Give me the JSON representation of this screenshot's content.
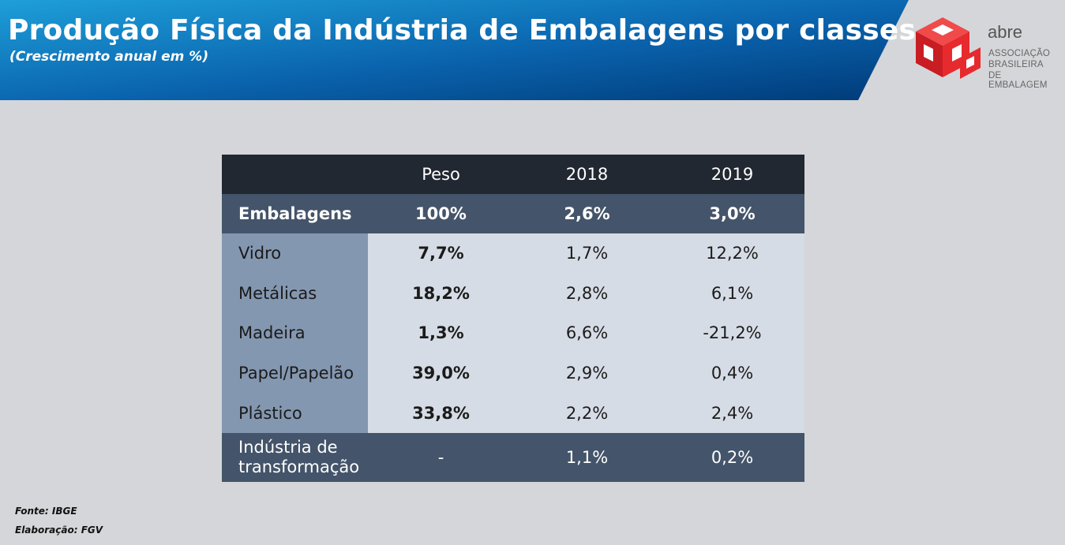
{
  "header": {
    "title": "Produção Física da Indústria de Embalagens por classes",
    "subtitle": "(Crescimento anual em %)"
  },
  "logo": {
    "name": "abre",
    "line1": "ASSOCIAÇÃO",
    "line2": "BRASILEIRA",
    "line3": "DE EMBALAGEM",
    "icon": "abre-cube-logo-icon"
  },
  "colors": {
    "header_gradient_start": "#1c9ad6",
    "header_gradient_end": "#003a78",
    "table_head": "#222831",
    "table_total": "#44546a",
    "label_column": "#8497b0",
    "value_cells": "#d6dce5",
    "logo_red": "#e62a2e"
  },
  "chart_data": {
    "type": "table",
    "columns": [
      "",
      "Peso",
      "2018",
      "2019"
    ],
    "total": {
      "label": "Embalagens",
      "peso": "100%",
      "y2018": "2,6%",
      "y2019": "3,0%"
    },
    "rows": [
      {
        "label": "Vidro",
        "peso": "7,7%",
        "y2018": "1,7%",
        "y2019": "12,2%"
      },
      {
        "label": "Metálicas",
        "peso": "18,2%",
        "y2018": "2,8%",
        "y2019": "6,1%"
      },
      {
        "label": "Madeira",
        "peso": "1,3%",
        "y2018": "6,6%",
        "y2019": "-21,2%"
      },
      {
        "label": "Papel/Papelão",
        "peso": "39,0%",
        "y2018": "2,9%",
        "y2019": "0,4%"
      },
      {
        "label": "Plástico",
        "peso": "33,8%",
        "y2018": "2,2%",
        "y2019": "2,4%"
      }
    ],
    "footer": {
      "label_line1": "Indústria de",
      "label_line2": "transformação",
      "peso": "-",
      "y2018": "1,1%",
      "y2019": "0,2%"
    }
  },
  "sources": {
    "fonte": "Fonte: IBGE",
    "elaboracao": "Elaboração: FGV"
  }
}
